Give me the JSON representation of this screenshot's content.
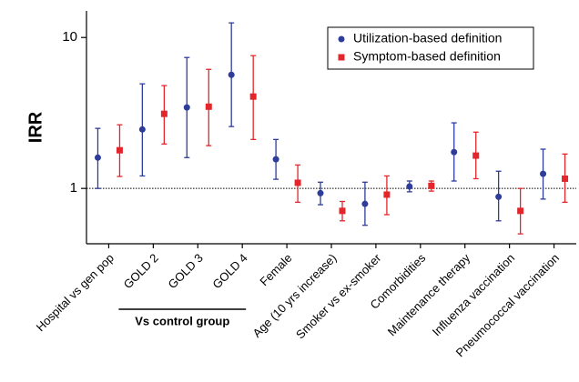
{
  "chart_data": {
    "type": "errorbar",
    "y_label": "IRR",
    "y_scale": "log",
    "ylim": [
      0.43,
      15
    ],
    "yticks": [
      1,
      10
    ],
    "reference_line": 1,
    "legend": "upper right",
    "group_label": "Vs control group",
    "categories": [
      "Hospital vs gen pop",
      "GOLD 2",
      "GOLD 3",
      "GOLD 4",
      "Female",
      "Age (10 yrs increase)",
      "Smoker vs ex-smoker",
      "Comorbidities",
      "Maintenance therapy",
      "Influenza vaccination",
      "Pneumococcal vaccination"
    ],
    "series": [
      {
        "name": "Utilization-based definition",
        "color": "#2e3d9a",
        "marker": "circle",
        "values": [
          1.6,
          2.46,
          3.44,
          5.66,
          1.56,
          0.93,
          0.79,
          1.03,
          1.74,
          0.88,
          1.25
        ],
        "lower": [
          1.0,
          1.21,
          1.6,
          2.57,
          1.15,
          0.78,
          0.57,
          0.95,
          1.12,
          0.61,
          0.85
        ],
        "upper": [
          2.5,
          4.93,
          7.37,
          12.5,
          2.11,
          1.1,
          1.1,
          1.12,
          2.72,
          1.3,
          1.82
        ]
      },
      {
        "name": "Symptom-based definition",
        "color": "#e3262b",
        "marker": "square",
        "values": [
          1.79,
          3.12,
          3.48,
          4.06,
          1.09,
          0.71,
          0.91,
          1.04,
          1.65,
          0.71,
          1.16
        ],
        "lower": [
          1.2,
          1.97,
          1.92,
          2.11,
          0.81,
          0.61,
          0.67,
          0.96,
          1.16,
          0.5,
          0.81
        ],
        "upper": [
          2.64,
          4.8,
          6.15,
          7.58,
          1.43,
          0.82,
          1.21,
          1.12,
          2.36,
          1.0,
          1.69
        ]
      }
    ]
  }
}
